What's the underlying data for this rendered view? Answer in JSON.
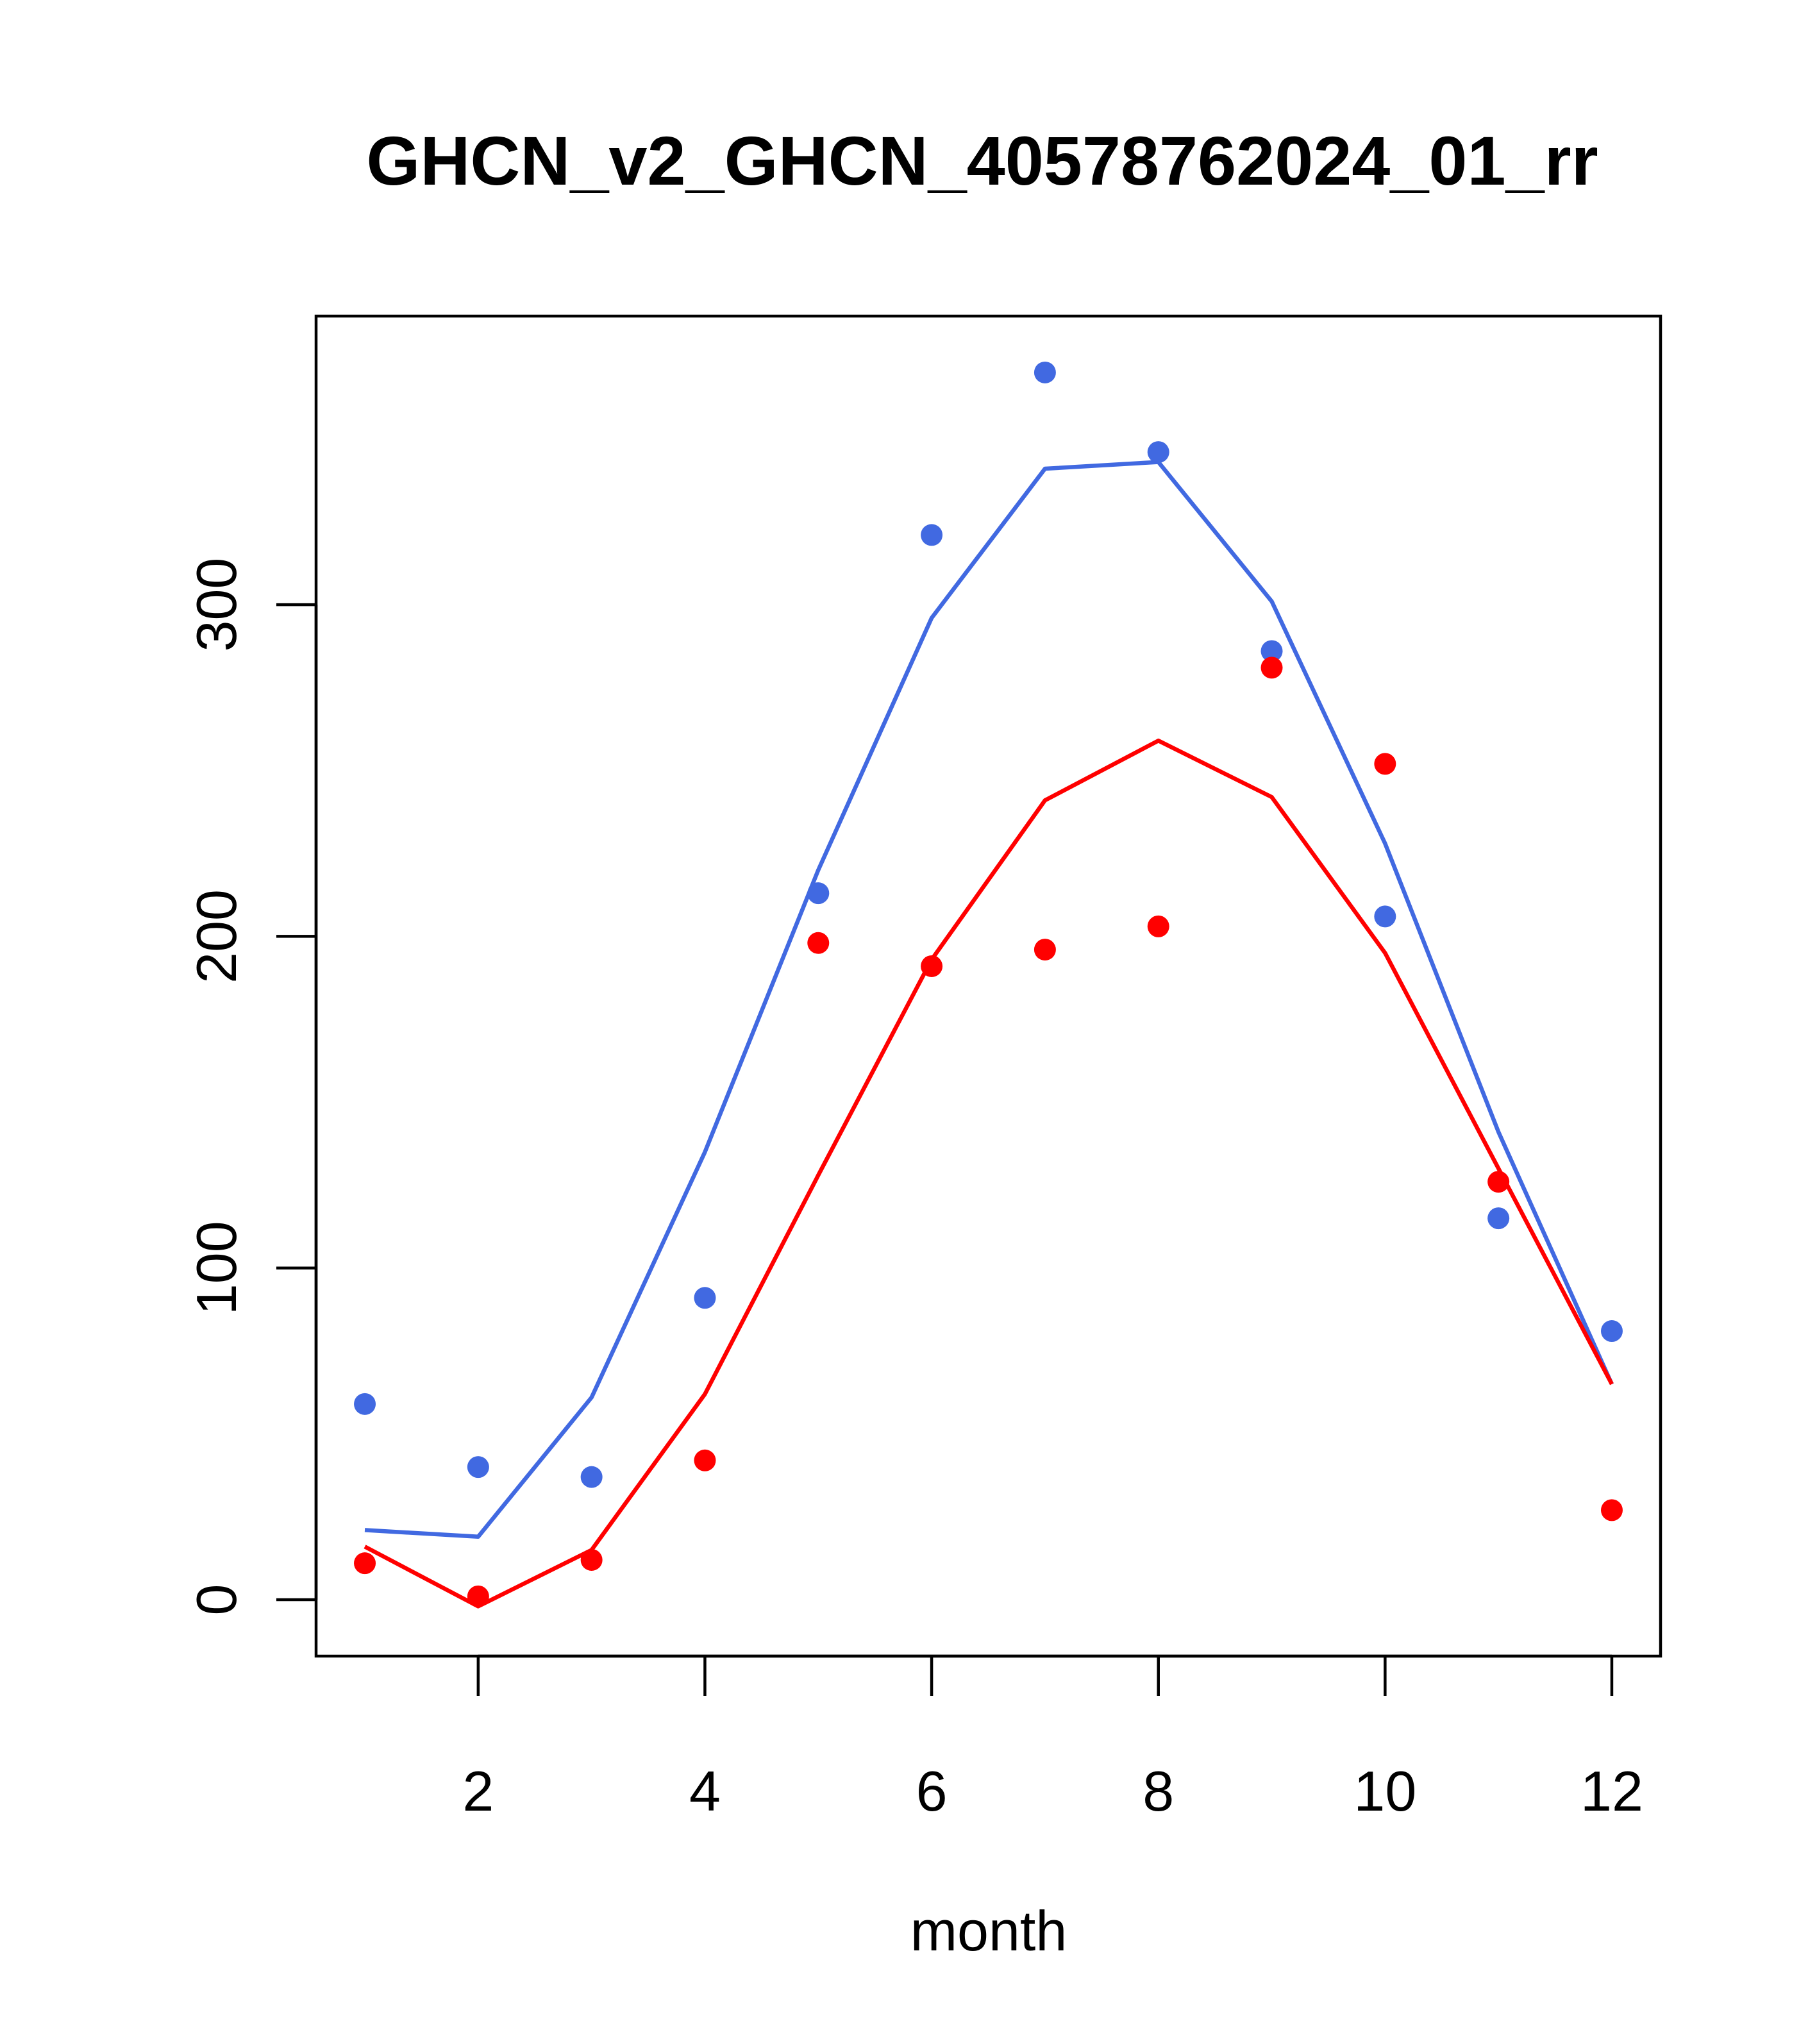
{
  "chart_data": {
    "type": "line",
    "title": "GHCN_v2_GHCN_40578762024_01_rr",
    "xlabel": "month",
    "ylabel": "",
    "xlim": [
      0.57,
      12.43
    ],
    "ylim": [
      -17,
      387
    ],
    "x_ticks": [
      2,
      4,
      6,
      8,
      10,
      12
    ],
    "y_ticks": [
      0,
      100,
      200,
      300
    ],
    "x": [
      1,
      2,
      3,
      4,
      5,
      6,
      7,
      8,
      9,
      10,
      11,
      12
    ],
    "series": [
      {
        "name": "blue",
        "color": "#4169E1",
        "line": [
          21,
          19,
          61,
          135,
          220,
          296,
          341,
          343,
          301,
          228,
          141,
          65
        ],
        "points": [
          59,
          40,
          37,
          91,
          213,
          321,
          370,
          346,
          286,
          206,
          115,
          81
        ]
      },
      {
        "name": "red",
        "color": "#FF0000",
        "line": [
          16,
          -2,
          15,
          62,
          128,
          193,
          241,
          259,
          242,
          195,
          130,
          65
        ],
        "points": [
          11,
          1,
          12,
          42,
          198,
          191,
          196,
          203,
          281,
          252,
          126,
          27
        ]
      }
    ]
  }
}
